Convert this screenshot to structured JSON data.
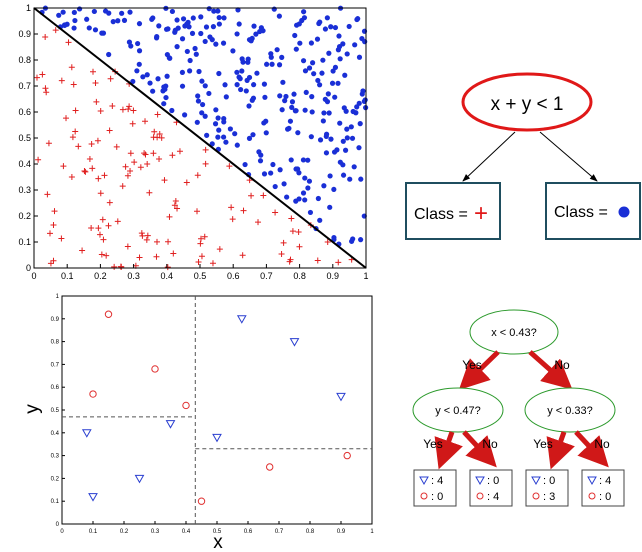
{
  "top_scatter": {
    "xticks": [
      "0",
      "0.1",
      "0.2",
      "0.3",
      "0.4",
      "0.5",
      "0.6",
      "0.7",
      "0.8",
      "0.9",
      "1"
    ],
    "yticks": [
      "0",
      "0.1",
      "0.2",
      "0.3",
      "0.4",
      "0.5",
      "0.6",
      "0.7",
      "0.8",
      "0.9",
      "1"
    ],
    "boundary": "x + y = 1",
    "plus_color": "#e02020",
    "dot_color": "#1a2fd6"
  },
  "top_tree": {
    "root": "x + y < 1",
    "left_leaf": "Class = ",
    "left_symbol": "+",
    "right_leaf": "Class = ",
    "right_symbol": "●"
  },
  "bottom_scatter": {
    "xlabel": "x",
    "ylabel": "y",
    "xticks": [
      "0",
      "0.1",
      "0.2",
      "0.3",
      "0.4",
      "0.5",
      "0.6",
      "0.7",
      "0.8",
      "0.9",
      "1"
    ],
    "yticks": [
      "0",
      "0.1",
      "0.2",
      "0.3",
      "0.4",
      "0.5",
      "0.6",
      "0.7",
      "0.8",
      "0.9",
      "1"
    ],
    "splits": {
      "x_split": 0.43,
      "y_split_left": 0.47,
      "y_split_right": 0.33
    },
    "triangle_color": "#2a3fd0",
    "circle_color": "#e03030"
  },
  "chart_data": {
    "type": "scatter",
    "series": [
      {
        "name": "",
        "marker": "triangle",
        "x": [
          0.08,
          0.1,
          0.25,
          0.35,
          0.5,
          0.58,
          0.75,
          0.9
        ],
        "y": [
          0.4,
          0.12,
          0.2,
          0.44,
          0.38,
          0.9,
          0.8,
          0.56
        ]
      },
      {
        "name": "",
        "marker": "circle",
        "x": [
          0.15,
          0.1,
          0.3,
          0.4,
          0.45,
          0.67,
          0.92
        ],
        "y": [
          0.92,
          0.57,
          0.68,
          0.52,
          0.1,
          0.25,
          0.3
        ]
      }
    ],
    "xlabel": "x",
    "ylabel": "y",
    "xlim": [
      0,
      1
    ],
    "ylim": [
      0,
      1
    ]
  },
  "bottom_tree": {
    "root": "x < 0.43?",
    "left_node": "y < 0.47?",
    "right_node": "y < 0.33?",
    "yes": "Yes",
    "no": "No",
    "leaves": [
      {
        "tri": ": 4",
        "circ": ": 0"
      },
      {
        "tri": ": 0",
        "circ": ": 4"
      },
      {
        "tri": ": 0",
        "circ": ": 3"
      },
      {
        "tri": ": 4",
        "circ": ": 0"
      }
    ]
  }
}
